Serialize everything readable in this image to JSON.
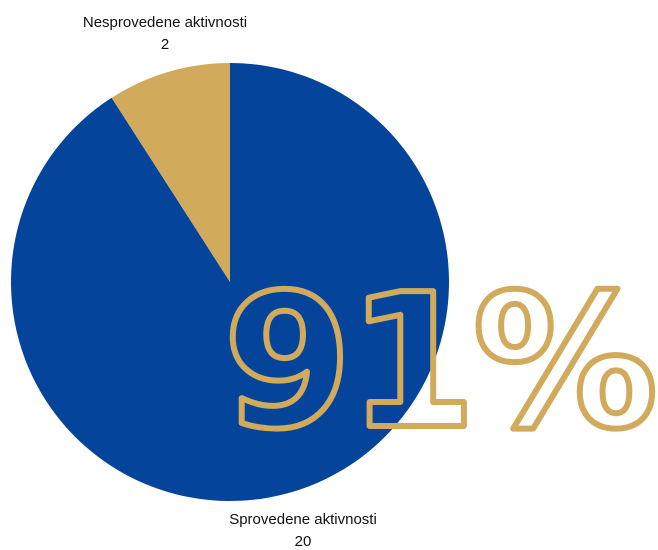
{
  "chart_data": {
    "type": "pie",
    "slices": [
      {
        "label": "Sprovedene aktivnosti",
        "value": 20,
        "color": "#05449B"
      },
      {
        "label": "Nesprovedene aktivnosti",
        "value": 2,
        "color": "#D1AA5B"
      }
    ],
    "start_angle_deg": 0,
    "direction": "clockwise"
  },
  "highlight": {
    "text": "91%",
    "color": "#D1AA5B"
  }
}
